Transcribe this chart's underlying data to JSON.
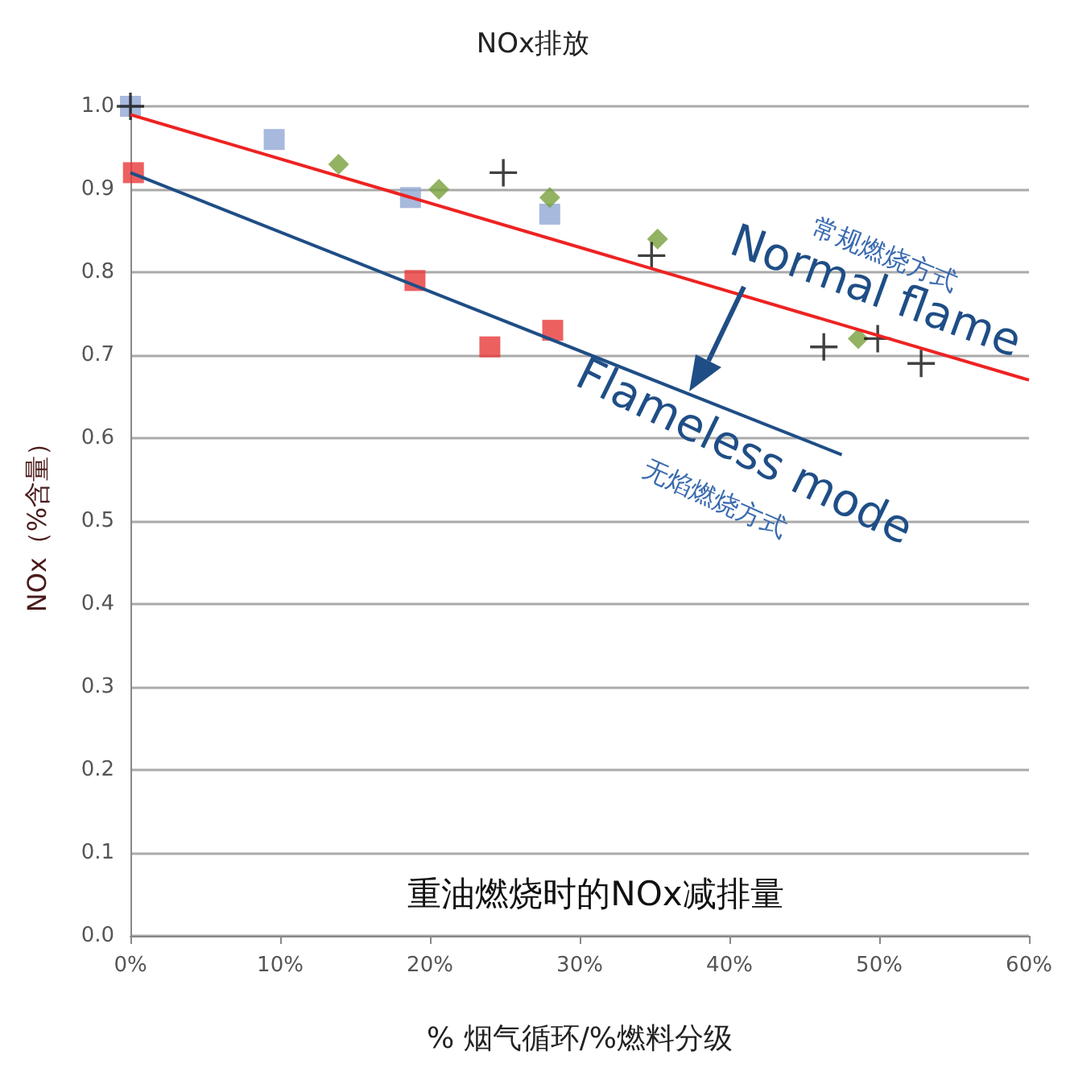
{
  "chart_data": {
    "type": "scatter",
    "title": "NOx排放",
    "xlabel": "% 烟气循环/%燃料分级",
    "ylabel": "NOx（%含量）",
    "xlim": [
      0,
      60
    ],
    "xticks": [
      {
        "value": 0,
        "label": "0%"
      },
      {
        "value": 10,
        "label": "10%"
      },
      {
        "value": 20,
        "label": "20%"
      },
      {
        "value": 30,
        "label": "30%"
      },
      {
        "value": 40,
        "label": "40%"
      },
      {
        "value": 50,
        "label": "50%"
      },
      {
        "value": 60,
        "label": "60%"
      }
    ],
    "ylim": [
      0,
      1
    ],
    "yticks": [
      {
        "value": 0,
        "label": "0.0"
      },
      {
        "value": 0.1,
        "label": "0.1"
      },
      {
        "value": 0.2,
        "label": "0.2"
      },
      {
        "value": 0.3,
        "label": "0.3"
      },
      {
        "value": 0.4,
        "label": "0.4"
      },
      {
        "value": 0.5,
        "label": "0.5"
      },
      {
        "value": 0.6,
        "label": "0.6"
      },
      {
        "value": 0.7,
        "label": "0.7"
      },
      {
        "value": 0.8,
        "label": "0.8"
      },
      {
        "value": 0.9,
        "label": "0.9"
      },
      {
        "value": 1,
        "label": "1.0"
      }
    ],
    "grid": "y",
    "series": [
      {
        "color": "#91a8d4",
        "marker": "square",
        "x": [
          0,
          9.6,
          18.7,
          28
        ],
        "values": [
          1.0,
          0.96,
          0.89,
          0.87
        ]
      },
      {
        "color": "#78a03c",
        "marker": "diamond",
        "x": [
          13.9,
          20.6,
          28,
          35.2,
          48.6
        ],
        "values": [
          0.93,
          0.9,
          0.89,
          0.84,
          0.72
        ]
      },
      {
        "color": "#111111",
        "marker": "cross",
        "x": [
          0,
          24.9,
          34.8,
          46.3,
          49.9,
          52.8
        ],
        "values": [
          1.0,
          0.92,
          0.82,
          0.71,
          0.72,
          0.69
        ]
      },
      {
        "color": "#e83838",
        "marker": "square",
        "x": [
          0.2,
          19,
          24,
          28.2
        ],
        "values": [
          0.92,
          0.79,
          0.71,
          0.73
        ]
      },
      {
        "type": "line",
        "color": "#ee2222",
        "marker": "none",
        "x": [
          0,
          60
        ],
        "values": [
          0.99,
          0.67
        ]
      },
      {
        "type": "line",
        "color": "#1f4e86",
        "marker": "none",
        "x": [
          0,
          47.5
        ],
        "values": [
          0.92,
          0.58
        ]
      }
    ],
    "annotations": [
      "Normal flame",
      "常规燃烧方式",
      "Flameless mode",
      "无焰燃烧方式",
      "重油燃烧时的NOx减排量"
    ]
  }
}
